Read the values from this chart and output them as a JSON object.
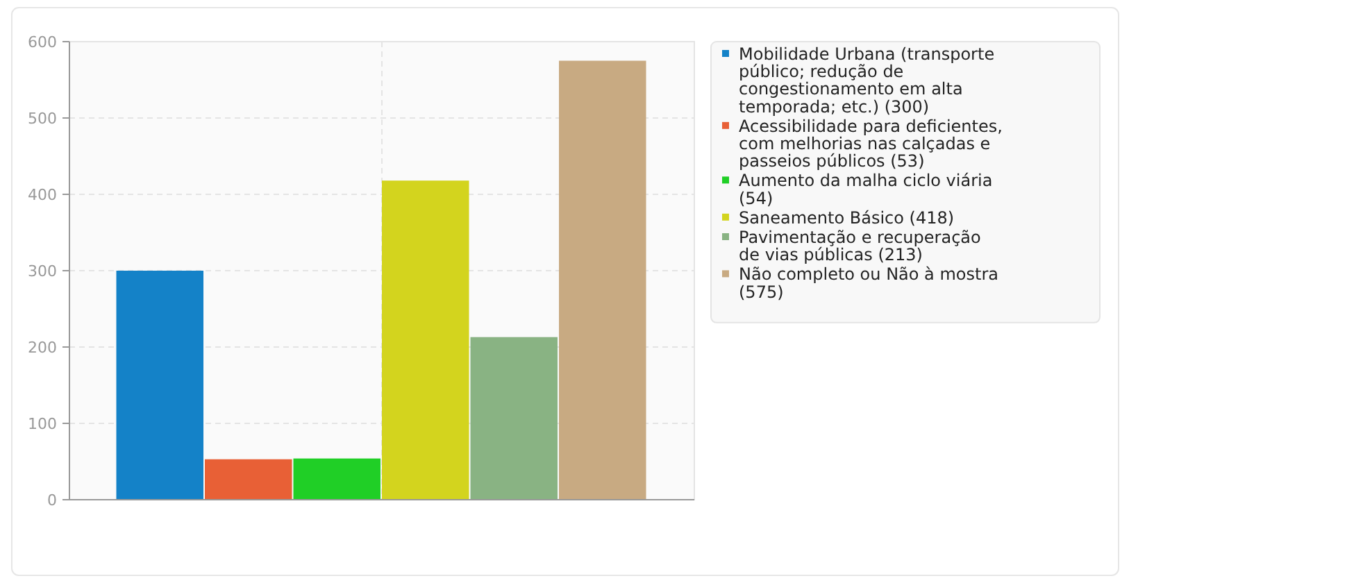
{
  "chart_data": {
    "type": "bar",
    "categories": [
      null
    ],
    "series": [
      {
        "name": "Mobilidade Urbana (transporte público; redução de congestionamento em alta temporada; etc.) (300)",
        "color": "#1482c8",
        "values": [
          300
        ]
      },
      {
        "name": "Acessibilidade para deficientes, com melhorias nas calçadas e passeios públicos (53)",
        "color": "#e86036",
        "values": [
          53
        ]
      },
      {
        "name": "Aumento da malha ciclo viária (54)",
        "color": "#20cf26",
        "values": [
          54
        ]
      },
      {
        "name": "Saneamento Básico (418)",
        "color": "#d3d41e",
        "values": [
          418
        ]
      },
      {
        "name": "Pavimentação e recuperação de vias públicas (213)",
        "color": "#89b383",
        "values": [
          213
        ]
      },
      {
        "name": "Não completo ou Não à mostra (575)",
        "color": "#c8aa82",
        "values": [
          575
        ]
      }
    ],
    "ylim": [
      0,
      600
    ],
    "yticks": [
      0,
      100,
      200,
      300,
      400,
      500,
      600
    ],
    "grid": true,
    "legend": "right"
  }
}
